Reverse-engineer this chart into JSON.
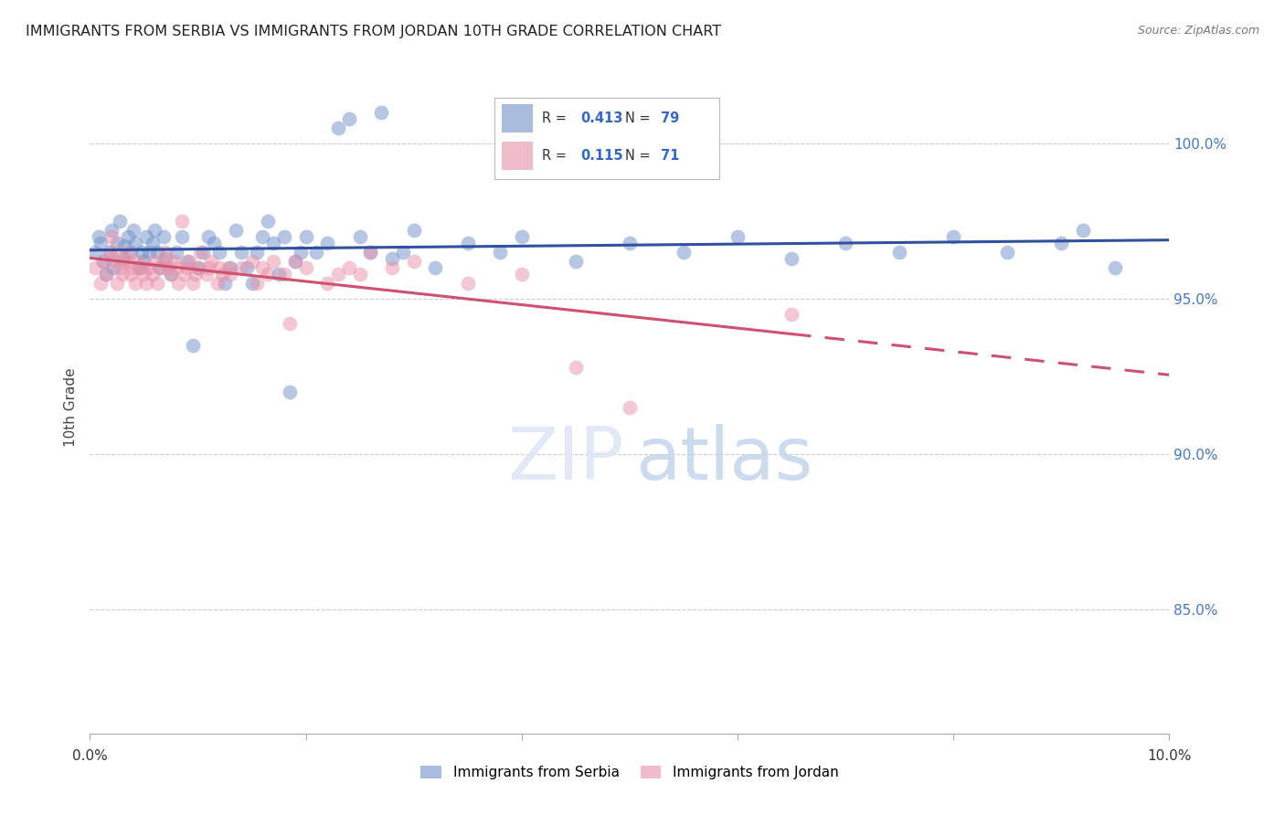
{
  "title": "IMMIGRANTS FROM SERBIA VS IMMIGRANTS FROM JORDAN 10TH GRADE CORRELATION CHART",
  "source": "Source: ZipAtlas.com",
  "ylabel": "10th Grade",
  "legend_serbia": "Immigrants from Serbia",
  "legend_jordan": "Immigrants from Jordan",
  "r_serbia": 0.413,
  "n_serbia": 79,
  "r_jordan": 0.115,
  "n_jordan": 71,
  "xlim": [
    0.0,
    10.0
  ],
  "ylim": [
    81.0,
    102.0
  ],
  "color_serbia": "#7090c8",
  "color_jordan": "#e890a8",
  "trendline_serbia": "#3050a0",
  "trendline_jordan": "#d05070",
  "serbia_x": [
    0.05,
    0.08,
    0.1,
    0.12,
    0.15,
    0.18,
    0.2,
    0.22,
    0.25,
    0.28,
    0.3,
    0.32,
    0.35,
    0.38,
    0.4,
    0.42,
    0.45,
    0.48,
    0.5,
    0.52,
    0.55,
    0.58,
    0.6,
    0.62,
    0.65,
    0.68,
    0.7,
    0.75,
    0.8,
    0.85,
    0.9,
    0.95,
    1.0,
    1.05,
    1.1,
    1.15,
    1.2,
    1.25,
    1.3,
    1.35,
    1.4,
    1.45,
    1.5,
    1.55,
    1.6,
    1.65,
    1.7,
    1.75,
    1.8,
    1.85,
    1.9,
    1.95,
    2.0,
    2.1,
    2.2,
    2.3,
    2.4,
    2.5,
    2.6,
    2.7,
    2.8,
    2.9,
    3.0,
    3.2,
    3.5,
    3.8,
    4.0,
    4.5,
    5.0,
    5.5,
    6.0,
    6.5,
    7.0,
    7.5,
    8.0,
    8.5,
    9.0,
    9.2,
    9.5
  ],
  "serbia_y": [
    96.5,
    97.0,
    96.8,
    96.2,
    95.8,
    96.5,
    97.2,
    96.0,
    96.8,
    97.5,
    96.3,
    96.7,
    97.0,
    96.5,
    97.2,
    96.8,
    96.0,
    96.5,
    96.2,
    97.0,
    96.5,
    96.8,
    97.2,
    96.5,
    96.0,
    97.0,
    96.3,
    95.8,
    96.5,
    97.0,
    96.2,
    93.5,
    96.0,
    96.5,
    97.0,
    96.8,
    96.5,
    95.5,
    96.0,
    97.2,
    96.5,
    96.0,
    95.5,
    96.5,
    97.0,
    97.5,
    96.8,
    95.8,
    97.0,
    92.0,
    96.2,
    96.5,
    97.0,
    96.5,
    96.8,
    100.5,
    100.8,
    97.0,
    96.5,
    101.0,
    96.3,
    96.5,
    97.2,
    96.0,
    96.8,
    96.5,
    97.0,
    96.2,
    96.8,
    96.5,
    97.0,
    96.3,
    96.8,
    96.5,
    97.0,
    96.5,
    96.8,
    97.2,
    96.0
  ],
  "jordan_x": [
    0.05,
    0.1,
    0.12,
    0.15,
    0.18,
    0.2,
    0.22,
    0.25,
    0.28,
    0.3,
    0.32,
    0.35,
    0.38,
    0.4,
    0.42,
    0.45,
    0.48,
    0.5,
    0.52,
    0.55,
    0.58,
    0.6,
    0.62,
    0.65,
    0.68,
    0.7,
    0.72,
    0.75,
    0.78,
    0.8,
    0.82,
    0.85,
    0.88,
    0.9,
    0.92,
    0.95,
    0.98,
    1.0,
    1.02,
    1.08,
    1.1,
    1.12,
    1.18,
    1.2,
    1.22,
    1.28,
    1.3,
    1.4,
    1.5,
    1.55,
    1.6,
    1.65,
    1.7,
    1.8,
    1.85,
    1.9,
    2.0,
    2.2,
    2.3,
    2.4,
    2.5,
    2.6,
    2.8,
    3.0,
    3.5,
    4.0,
    4.5,
    5.0,
    6.5,
    0.25,
    0.35
  ],
  "jordan_y": [
    96.0,
    95.5,
    96.2,
    95.8,
    96.5,
    97.0,
    96.2,
    95.5,
    96.0,
    95.8,
    96.2,
    96.5,
    95.8,
    96.0,
    95.5,
    96.2,
    96.0,
    95.8,
    95.5,
    96.0,
    95.8,
    96.2,
    95.5,
    96.0,
    96.2,
    96.5,
    96.0,
    95.8,
    96.2,
    96.0,
    95.5,
    97.5,
    95.8,
    96.0,
    96.2,
    95.5,
    95.8,
    96.0,
    96.5,
    95.8,
    96.0,
    96.2,
    95.5,
    96.0,
    95.8,
    96.0,
    95.8,
    96.0,
    96.2,
    95.5,
    96.0,
    95.8,
    96.2,
    95.8,
    94.2,
    96.2,
    96.0,
    95.5,
    95.8,
    96.0,
    95.8,
    96.5,
    96.0,
    96.2,
    95.5,
    95.8,
    92.8,
    91.5,
    94.5,
    96.5,
    96.2
  ]
}
